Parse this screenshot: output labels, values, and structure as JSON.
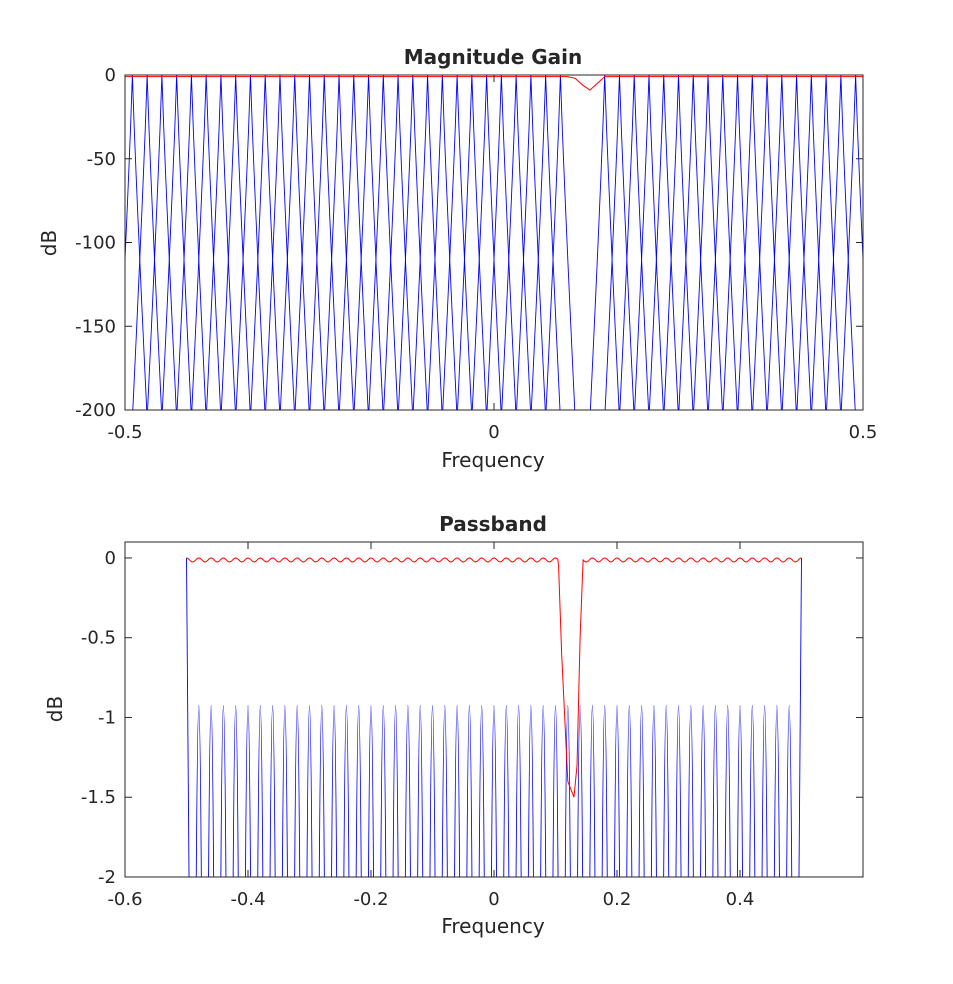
{
  "colors": {
    "background": "#ffffff",
    "axes": "#262626",
    "filterbank": "#0000ff",
    "overall": "#ff0000"
  },
  "chart_data": [
    {
      "type": "line",
      "title": "Magnitude Gain",
      "xlabel": "Frequency",
      "ylabel": "dB",
      "xlim": [
        -0.5,
        0.5
      ],
      "ylim": [
        -200,
        0
      ],
      "xticks": [
        -0.5,
        0,
        0.5
      ],
      "xtick_labels": [
        "-0.5",
        "0",
        "0.5"
      ],
      "yticks": [
        0,
        -50,
        -100,
        -150,
        -200
      ],
      "ytick_labels": [
        "0",
        "-50",
        "-100",
        "-150",
        "-200"
      ],
      "grid": false,
      "legend": "none",
      "series": [
        {
          "role": "filterbank",
          "color": "#0000ff",
          "channels": 50,
          "center_start": -0.49,
          "center_step": 0.02,
          "skip_centers": [
            0.11,
            0.13
          ],
          "description": "50 overlapping bandpass channels, each reaching 0 dB at its center and below -200 dB at ±0.02"
        },
        {
          "role": "overall",
          "color": "#ff0000",
          "x": [
            -0.5,
            0.1,
            0.11,
            0.12,
            0.13,
            0.14,
            0.15,
            0.5
          ],
          "y": [
            -1,
            -1,
            -2,
            -6,
            -9,
            -5,
            -1,
            -1
          ]
        }
      ]
    },
    {
      "type": "line",
      "title": "Passband",
      "xlabel": "Frequency",
      "ylabel": "dB",
      "xlim": [
        -0.6,
        0.6
      ],
      "ylim": [
        -2,
        0.1
      ],
      "xticks": [
        -0.6,
        -0.4,
        -0.2,
        0,
        0.2,
        0.4
      ],
      "xtick_labels": [
        "-0.6",
        "-0.4",
        "-0.2",
        "0",
        "0.2",
        "0.4"
      ],
      "yticks": [
        0,
        -0.5,
        -1,
        -1.5,
        -2
      ],
      "ytick_labels": [
        "0",
        "-0.5",
        "-1",
        "-1.5",
        "-2"
      ],
      "grid": false,
      "legend": "none",
      "series": [
        {
          "role": "filterbank",
          "color": "#0000ff",
          "x_range": [
            -0.5,
            0.5
          ],
          "channels": 50,
          "description": "each channel peaks at 0 dB and falls below -2 dB within ±0.004 of its center"
        },
        {
          "role": "overall",
          "color": "#ff0000",
          "x": [
            -0.5,
            0.1,
            0.105,
            0.11,
            0.12,
            0.13,
            0.135,
            0.14,
            0.145,
            0.5
          ],
          "y": [
            0,
            0,
            -0.05,
            -0.6,
            -1.4,
            -1.5,
            -1.3,
            -0.5,
            0,
            0
          ],
          "ripple_db": 0.025
        }
      ]
    }
  ]
}
